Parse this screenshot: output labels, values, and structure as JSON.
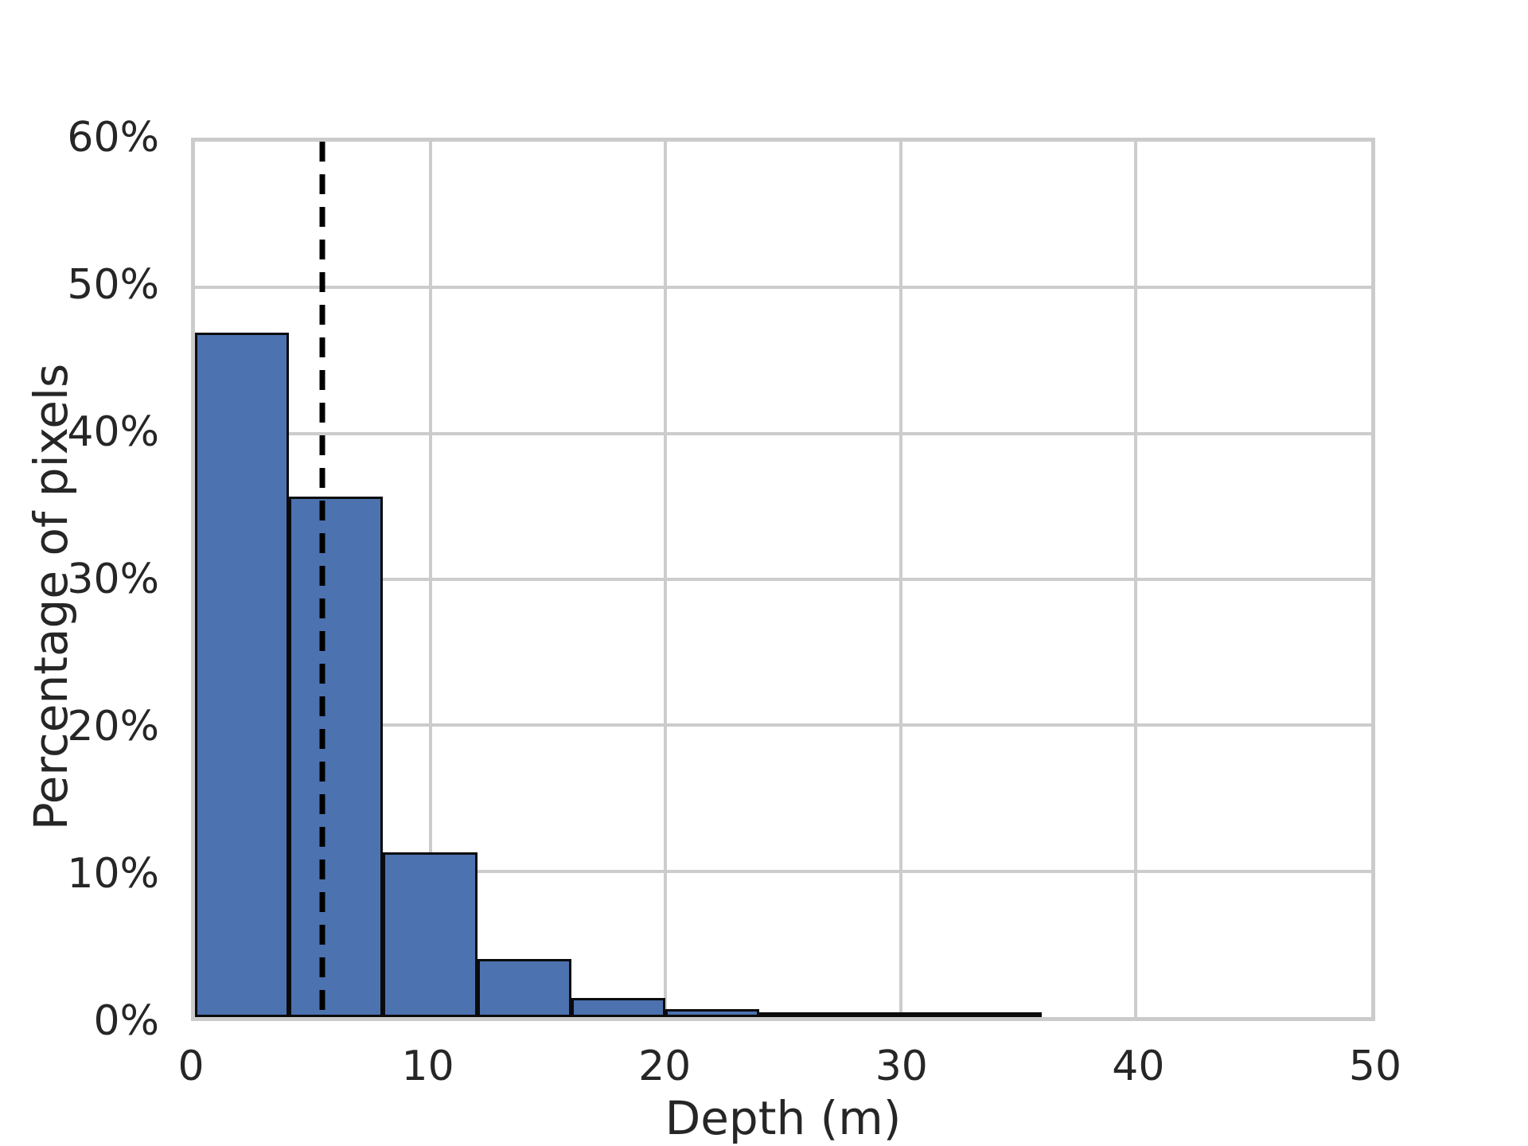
{
  "chart_data": {
    "type": "bar",
    "subtype": "histogram",
    "title": "",
    "xlabel": "Depth (m)",
    "ylabel": "Percentage of pixels",
    "xlim": [
      0,
      50
    ],
    "ylim": [
      0,
      60
    ],
    "grid": "on",
    "legend": "none",
    "bin_width": 4,
    "bin_edges": [
      0,
      4,
      8,
      12,
      16,
      20,
      24,
      28,
      32,
      36
    ],
    "values": [
      46.9,
      35.7,
      11.3,
      4.0,
      1.3,
      0.55,
      0.3,
      0.2,
      0.15
    ],
    "x_ticks": [
      {
        "value": 0,
        "label": "0"
      },
      {
        "value": 10,
        "label": "10"
      },
      {
        "value": 20,
        "label": "20"
      },
      {
        "value": 30,
        "label": "30"
      },
      {
        "value": 40,
        "label": "40"
      },
      {
        "value": 50,
        "label": "50"
      }
    ],
    "y_ticks": [
      {
        "value": 0,
        "label": "0%"
      },
      {
        "value": 10,
        "label": "10%"
      },
      {
        "value": 20,
        "label": "20%"
      },
      {
        "value": 30,
        "label": "30%"
      },
      {
        "value": 40,
        "label": "40%"
      },
      {
        "value": 50,
        "label": "50%"
      },
      {
        "value": 60,
        "label": "60%"
      }
    ],
    "annotations": [
      {
        "type": "vline",
        "x": 5.4,
        "style": "dashed",
        "color": "#000000",
        "meaning": "mean-depth-marker"
      }
    ],
    "colors": {
      "bar_fill": "#4C72B0",
      "bar_edge": "#0b0b0b",
      "grid": "#cccccc",
      "spine": "#cbcbcb",
      "text": "#262626",
      "background": "#ffffff"
    }
  }
}
